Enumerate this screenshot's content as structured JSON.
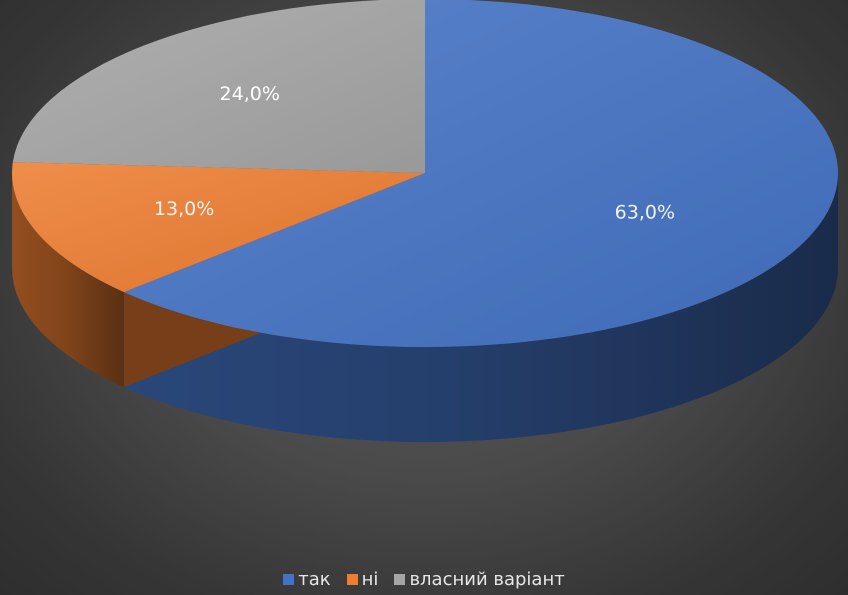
{
  "chart_data": {
    "type": "pie",
    "variant": "3d",
    "categories": [
      "так",
      "ні",
      "власний варіант"
    ],
    "values": [
      63.0,
      13.0,
      24.0
    ],
    "labels": [
      "63,0%",
      "13,0%",
      "24,0%"
    ],
    "colors": [
      "#4472C4",
      "#ED7D31",
      "#A5A5A5"
    ],
    "legend_position": "bottom",
    "start_angle": "12 o'clock",
    "direction": "clockwise"
  }
}
